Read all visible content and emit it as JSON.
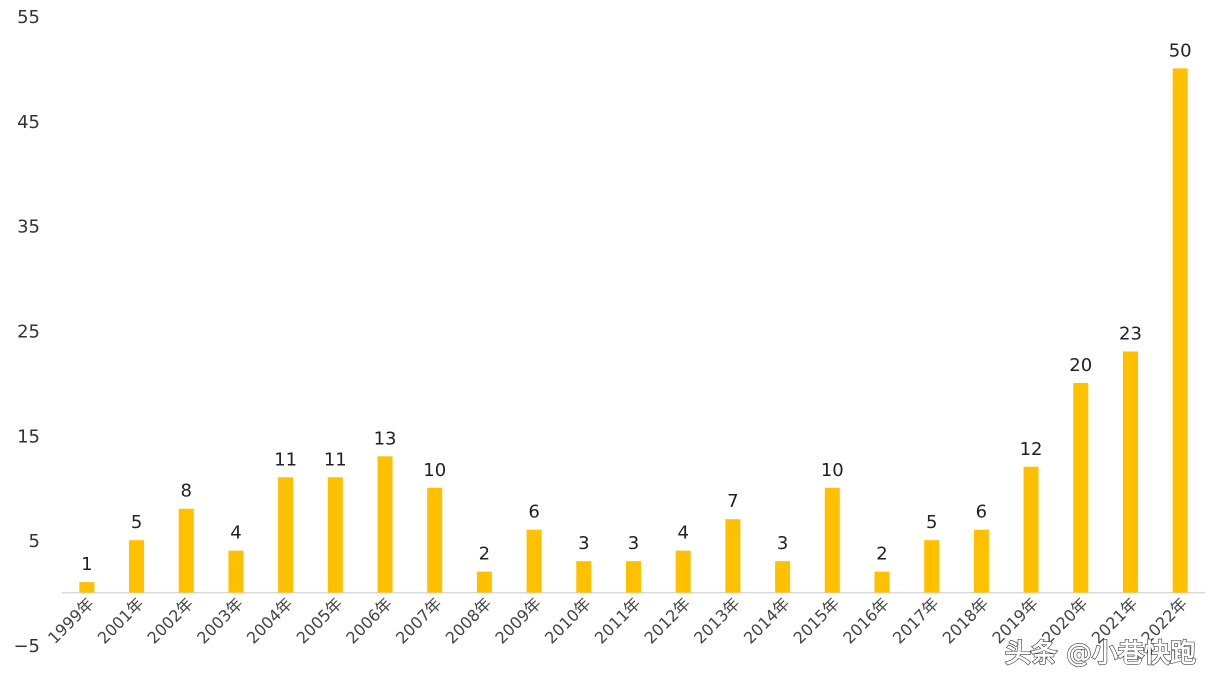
{
  "chart_data": {
    "type": "bar",
    "categories": [
      "1999年",
      "2001年",
      "2002年",
      "2003年",
      "2004年",
      "2005年",
      "2006年",
      "2007年",
      "2008年",
      "2009年",
      "2010年",
      "2011年",
      "2012年",
      "2013年",
      "2014年",
      "2015年",
      "2016年",
      "2017年",
      "2018年",
      "2019年",
      "2020年",
      "2021年",
      "2022年"
    ],
    "values": [
      1,
      5,
      8,
      4,
      11,
      11,
      13,
      10,
      2,
      6,
      3,
      3,
      4,
      7,
      3,
      10,
      2,
      5,
      6,
      12,
      20,
      23,
      50
    ],
    "ylim": [
      -5,
      55
    ],
    "yticks": [
      -5,
      5,
      15,
      25,
      35,
      45,
      55
    ],
    "grid": false,
    "bar_color": "#FFC000",
    "axis_color": "#D9D9D9"
  },
  "watermark": "头条 @小巷快跑"
}
